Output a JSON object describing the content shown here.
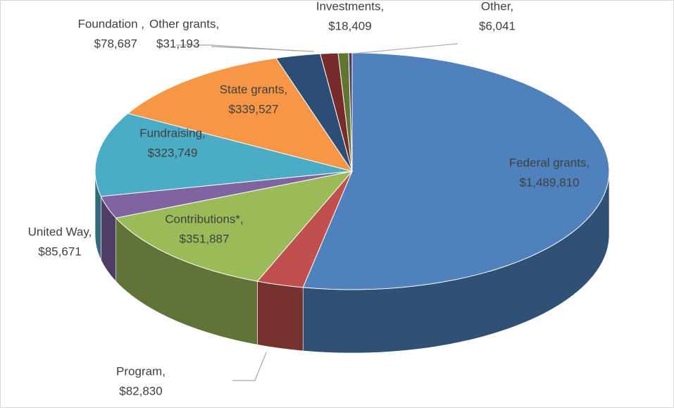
{
  "chart_data": {
    "type": "pie3d",
    "categories": [
      "Federal grants,",
      "Program,",
      "Contributions*,",
      "United Way,",
      "Fundraising,",
      "State grants,",
      "Foundation ,",
      "Other grants,",
      "Investments,",
      "Other,"
    ],
    "values": [
      1489810,
      82830,
      351887,
      85671,
      323749,
      339527,
      78687,
      31193,
      18409,
      6041
    ],
    "value_labels": [
      "$1,489,810",
      "$82,830",
      "$351,887",
      "$85,671",
      "$323,749",
      "$339,527",
      "$78,687",
      "$31,193",
      "$18,409",
      "$6,041"
    ],
    "colors": [
      "#4f81bd",
      "#c0504d",
      "#9bbb59",
      "#8064a2",
      "#4bacc6",
      "#f79646",
      "#2c4d75",
      "#772c2a",
      "#5f7530",
      "#4d3b62"
    ]
  }
}
